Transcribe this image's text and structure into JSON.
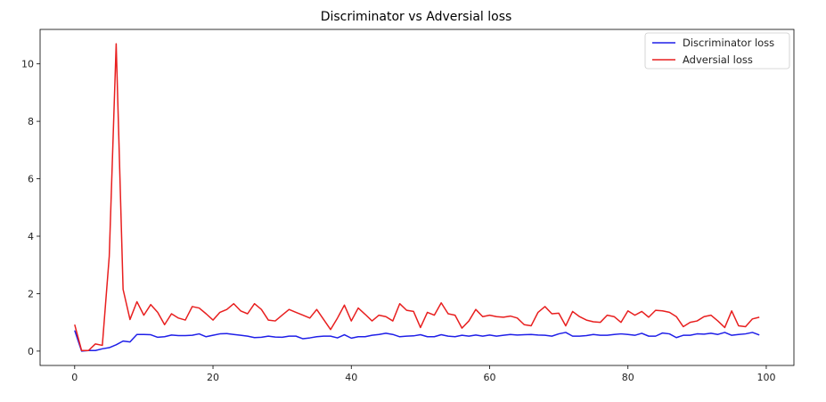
{
  "chart_data": {
    "type": "line",
    "title": "Discriminator vs Adversial loss",
    "xlabel": "",
    "ylabel": "",
    "xlim": [
      -5,
      104
    ],
    "ylim": [
      -0.5,
      11.2
    ],
    "xticks": [
      0,
      20,
      40,
      60,
      80,
      100
    ],
    "yticks": [
      0,
      2,
      4,
      6,
      8,
      10
    ],
    "grid": false,
    "legend": "top-right",
    "x": [
      0,
      1,
      2,
      3,
      4,
      5,
      6,
      7,
      8,
      9,
      10,
      11,
      12,
      13,
      14,
      15,
      16,
      17,
      18,
      19,
      20,
      21,
      22,
      23,
      24,
      25,
      26,
      27,
      28,
      29,
      30,
      31,
      32,
      33,
      34,
      35,
      36,
      37,
      38,
      39,
      40,
      41,
      42,
      43,
      44,
      45,
      46,
      47,
      48,
      49,
      50,
      51,
      52,
      53,
      54,
      55,
      56,
      57,
      58,
      59,
      60,
      61,
      62,
      63,
      64,
      65,
      66,
      67,
      68,
      69,
      70,
      71,
      72,
      73,
      74,
      75,
      76,
      77,
      78,
      79,
      80,
      81,
      82,
      83,
      84,
      85,
      86,
      87,
      88,
      89,
      90,
      91,
      92,
      93,
      94,
      95,
      96,
      97,
      98,
      99
    ],
    "series": [
      {
        "name": "Discriminator loss",
        "color": "#1f1fe8",
        "values": [
          0.72,
          0.0,
          0.02,
          0.02,
          0.08,
          0.12,
          0.22,
          0.35,
          0.32,
          0.58,
          0.58,
          0.57,
          0.48,
          0.5,
          0.56,
          0.54,
          0.54,
          0.55,
          0.6,
          0.5,
          0.55,
          0.6,
          0.61,
          0.58,
          0.55,
          0.52,
          0.47,
          0.48,
          0.52,
          0.49,
          0.48,
          0.52,
          0.52,
          0.43,
          0.46,
          0.5,
          0.52,
          0.52,
          0.46,
          0.57,
          0.45,
          0.5,
          0.5,
          0.55,
          0.58,
          0.62,
          0.58,
          0.5,
          0.52,
          0.53,
          0.57,
          0.5,
          0.5,
          0.57,
          0.52,
          0.5,
          0.55,
          0.52,
          0.56,
          0.52,
          0.56,
          0.52,
          0.55,
          0.58,
          0.56,
          0.57,
          0.58,
          0.56,
          0.55,
          0.52,
          0.6,
          0.65,
          0.52,
          0.52,
          0.54,
          0.58,
          0.55,
          0.55,
          0.58,
          0.6,
          0.58,
          0.55,
          0.62,
          0.52,
          0.52,
          0.63,
          0.6,
          0.47,
          0.55,
          0.55,
          0.6,
          0.59,
          0.62,
          0.58,
          0.65,
          0.55,
          0.58,
          0.6,
          0.65,
          0.56
        ]
      },
      {
        "name": "Adversial loss",
        "color": "#e81f1f",
        "values": [
          0.92,
          0.02,
          0.02,
          0.25,
          0.2,
          3.3,
          10.7,
          2.15,
          1.1,
          1.72,
          1.25,
          1.62,
          1.35,
          0.92,
          1.3,
          1.15,
          1.08,
          1.55,
          1.5,
          1.3,
          1.08,
          1.35,
          1.45,
          1.65,
          1.4,
          1.3,
          1.65,
          1.45,
          1.08,
          1.05,
          1.25,
          1.45,
          1.35,
          1.25,
          1.15,
          1.45,
          1.1,
          0.75,
          1.15,
          1.6,
          1.05,
          1.5,
          1.28,
          1.05,
          1.25,
          1.2,
          1.05,
          1.65,
          1.42,
          1.38,
          0.82,
          1.35,
          1.25,
          1.68,
          1.3,
          1.25,
          0.8,
          1.05,
          1.45,
          1.2,
          1.25,
          1.2,
          1.18,
          1.22,
          1.15,
          0.92,
          0.88,
          1.35,
          1.55,
          1.3,
          1.32,
          0.88,
          1.38,
          1.2,
          1.08,
          1.02,
          1.0,
          1.25,
          1.2,
          1.0,
          1.4,
          1.25,
          1.38,
          1.18,
          1.42,
          1.4,
          1.35,
          1.2,
          0.85,
          1.0,
          1.05,
          1.2,
          1.25,
          1.05,
          0.82,
          1.4,
          0.88,
          0.85,
          1.12,
          1.18
        ]
      }
    ]
  }
}
